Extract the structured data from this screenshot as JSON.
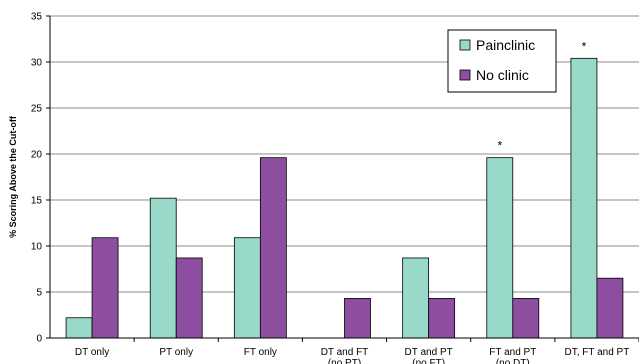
{
  "chart_data": {
    "type": "bar",
    "categories": [
      "DT only",
      "PT only",
      "FT only",
      "DT and FT (no PT)",
      "DT and PT (no FT)",
      "FT and PT (no DT)",
      "DT, FT and PT"
    ],
    "category_lines": [
      [
        "DT only"
      ],
      [
        "PT only"
      ],
      [
        "FT only"
      ],
      [
        "DT and FT",
        "(no PT)"
      ],
      [
        "DT and PT",
        "(no FT)"
      ],
      [
        "FT and PT",
        "(no DT)"
      ],
      [
        "DT, FT and PT"
      ]
    ],
    "series": [
      {
        "name": "Painclinic",
        "color": "#99d9c9",
        "values": [
          2.2,
          15.2,
          10.9,
          0,
          8.7,
          19.6,
          30.4
        ]
      },
      {
        "name": "No clinic",
        "color": "#8e4ea0",
        "values": [
          10.9,
          8.7,
          19.6,
          4.3,
          4.3,
          4.3,
          6.5
        ]
      }
    ],
    "annotations": [
      {
        "category_index": 5,
        "series_index": 0,
        "text": "*"
      },
      {
        "category_index": 6,
        "series_index": 0,
        "text": "*"
      }
    ],
    "ylabel": "% Scoring Above the Cut-off",
    "ylim": [
      0,
      35
    ],
    "yticks": [
      0,
      5,
      10,
      15,
      20,
      25,
      30,
      35
    ],
    "grid": true,
    "legend_position": "top-right"
  }
}
